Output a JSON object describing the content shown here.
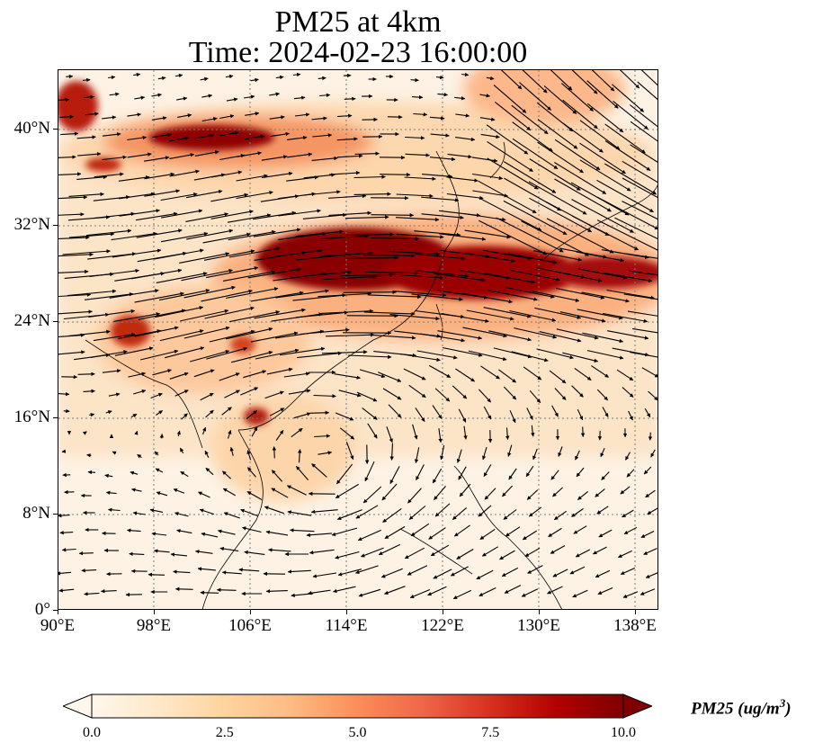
{
  "title_line1": "PM25 at 4km",
  "title_line2": "Time: 2024-02-23 16:00:00",
  "lat_ticks": [
    "0°",
    "8°N",
    "16°N",
    "24°N",
    "32°N",
    "40°N"
  ],
  "lon_ticks": [
    "90°E",
    "98°E",
    "106°E",
    "114°E",
    "122°E",
    "130°E",
    "138°E"
  ],
  "colorbar": {
    "tick_labels": [
      "0.0",
      "2.5",
      "5.0",
      "7.5",
      "10.0"
    ],
    "label_main": "PM25 (ug/m",
    "label_sup": "3",
    "label_end": ")",
    "min": 0,
    "max": 10,
    "extend": "both",
    "colormap": "OrRd",
    "colors": [
      "#fff7ec",
      "#fee8c8",
      "#fdd49e",
      "#fdbb84",
      "#fc8d59",
      "#ef6548",
      "#d7301f",
      "#b30000",
      "#7f0000"
    ]
  },
  "map": {
    "projection": "PlateCarree",
    "lon_range": [
      90,
      140
    ],
    "lat_range": [
      0,
      45
    ],
    "gridlines": "dotted",
    "overlay": "wind vectors (quiver)"
  }
}
